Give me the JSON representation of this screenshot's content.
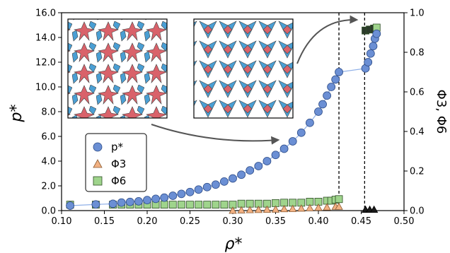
{
  "chart_data": {
    "type": "scatter",
    "xlabel": "ρ*",
    "ylabel_left": "p*",
    "ylabel_right": "Φ3, Φ6",
    "xlim": [
      0.1,
      0.5
    ],
    "ylim_left": [
      0.0,
      16.0
    ],
    "ylim_right": [
      0.0,
      1.0
    ],
    "x_ticks": [
      "0.10",
      "0.15",
      "0.20",
      "0.25",
      "0.30",
      "0.35",
      "0.40",
      "0.45",
      "0.50"
    ],
    "y_ticks_left": [
      "0.0",
      "2.0",
      "4.0",
      "6.0",
      "8.0",
      "10.0",
      "12.0",
      "14.0",
      "16.0"
    ],
    "y_ticks_right": [
      "0.0",
      "0.2",
      "0.4",
      "0.6",
      "0.8",
      "1.0"
    ],
    "vlines": [
      0.424,
      0.454
    ],
    "legend_position": "lower-left",
    "legend": [
      {
        "label": "p*",
        "marker": "circle",
        "color": "#6b8fd4"
      },
      {
        "label": "Φ3",
        "marker": "triangle",
        "color": "#f2b183"
      },
      {
        "label": "Φ6",
        "marker": "square",
        "color": "#9fd48c"
      }
    ],
    "series": [
      {
        "name": "p*",
        "axis": "left",
        "x": [
          0.11,
          0.14,
          0.16,
          0.17,
          0.18,
          0.19,
          0.2,
          0.21,
          0.22,
          0.23,
          0.24,
          0.25,
          0.26,
          0.27,
          0.28,
          0.29,
          0.3,
          0.31,
          0.32,
          0.33,
          0.34,
          0.35,
          0.36,
          0.37,
          0.38,
          0.39,
          0.4,
          0.405,
          0.41,
          0.415,
          0.42,
          0.424,
          0.455,
          0.458,
          0.461,
          0.464,
          0.466,
          0.468
        ],
        "y": [
          0.4,
          0.5,
          0.55,
          0.65,
          0.7,
          0.75,
          0.85,
          0.95,
          1.05,
          1.2,
          1.35,
          1.5,
          1.7,
          1.9,
          2.1,
          2.35,
          2.6,
          2.9,
          3.25,
          3.6,
          4.0,
          4.5,
          5.0,
          5.6,
          6.3,
          7.1,
          8.0,
          8.6,
          9.3,
          10.0,
          10.6,
          11.2,
          11.5,
          12.0,
          12.7,
          13.3,
          13.9,
          14.3
        ]
      },
      {
        "name": "Φ3",
        "axis": "right",
        "x": [
          0.3,
          0.31,
          0.32,
          0.33,
          0.34,
          0.35,
          0.36,
          0.37,
          0.38,
          0.39,
          0.4,
          0.41,
          0.42,
          0.424,
          0.455,
          0.46,
          0.465
        ],
        "y": [
          0.0,
          0.002,
          0.003,
          0.004,
          0.005,
          0.006,
          0.008,
          0.009,
          0.011,
          0.013,
          0.015,
          0.017,
          0.02,
          0.02,
          0.005,
          0.005,
          0.005
        ]
      },
      {
        "name": "Φ6",
        "axis": "right",
        "x": [
          0.11,
          0.14,
          0.16,
          0.17,
          0.18,
          0.19,
          0.2,
          0.21,
          0.22,
          0.23,
          0.24,
          0.25,
          0.26,
          0.27,
          0.28,
          0.29,
          0.3,
          0.31,
          0.32,
          0.33,
          0.34,
          0.35,
          0.36,
          0.37,
          0.38,
          0.39,
          0.4,
          0.41,
          0.415,
          0.42,
          0.424,
          0.455,
          0.46,
          0.465,
          0.468
        ],
        "y": [
          0.03,
          0.03,
          0.03,
          0.03,
          0.03,
          0.03,
          0.03,
          0.03,
          0.03,
          0.03,
          0.03,
          0.03,
          0.03,
          0.03,
          0.03,
          0.03,
          0.03,
          0.035,
          0.035,
          0.035,
          0.035,
          0.038,
          0.04,
          0.04,
          0.04,
          0.045,
          0.045,
          0.05,
          0.05,
          0.055,
          0.058,
          0.91,
          0.915,
          0.92,
          0.925
        ]
      }
    ],
    "insets": [
      {
        "description": "disordered tiling snapshot",
        "colors": [
          "#d9626a",
          "#4a9fd4"
        ]
      },
      {
        "description": "ordered tiling snapshot",
        "colors": [
          "#d9626a",
          "#4a9fd4"
        ]
      }
    ]
  }
}
